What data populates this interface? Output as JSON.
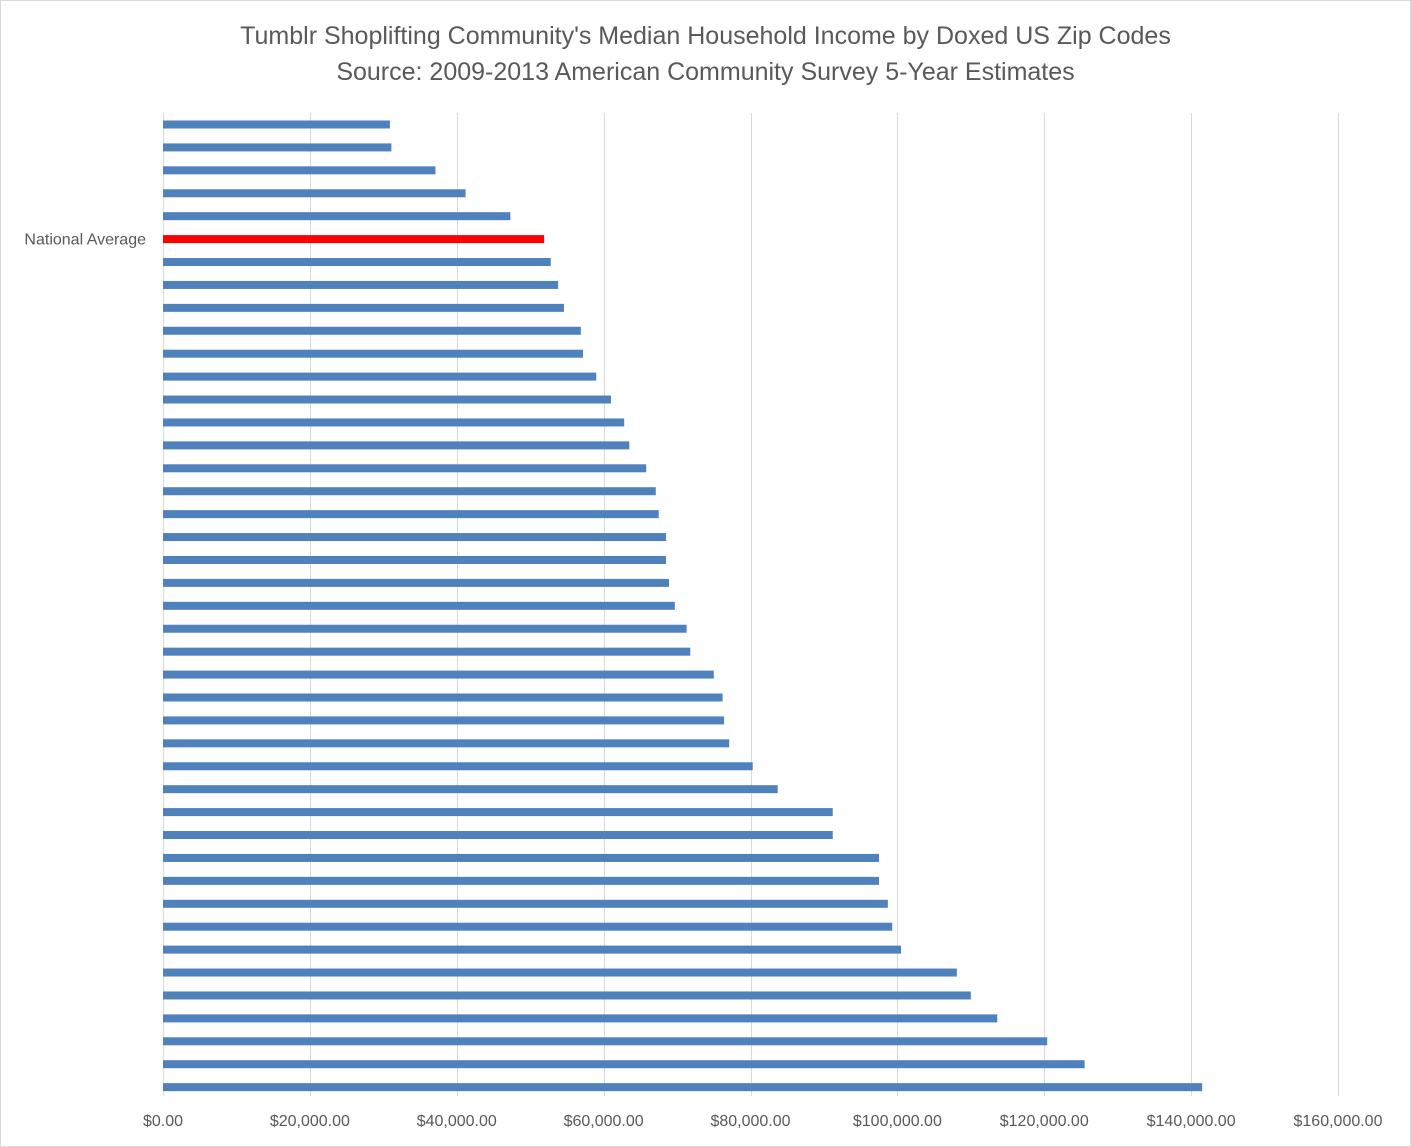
{
  "chart_data": {
    "type": "bar",
    "orientation": "horizontal",
    "title": "Tumblr Shoplifting Community's Median Household Income by Doxed US Zip Codes",
    "subtitle": "Source: 2009-2013 American Community Survey 5-Year Estimates",
    "xlabel": "",
    "ylabel": "",
    "xlim": [
      0,
      160000
    ],
    "x_ticks": [
      0,
      20000,
      40000,
      60000,
      80000,
      100000,
      120000,
      140000,
      160000
    ],
    "x_tick_labels": [
      "$0.00",
      "$20,000.00",
      "$40,000.00",
      "$60,000.00",
      "$80,000.00",
      "$100,000.00",
      "$120,000.00",
      "$140,000.00",
      "$160,000.00"
    ],
    "grid": "vertical",
    "legend": "none",
    "bar_color": "#4f81bd",
    "highlight_color": "#ff0000",
    "categories": [
      "",
      "",
      "",
      "",
      "",
      "National Average",
      "",
      "",
      "",
      "",
      "",
      "",
      "",
      "",
      "",
      "",
      "",
      "",
      "",
      "",
      "",
      "",
      "",
      "",
      "",
      "",
      "",
      "",
      "",
      "",
      "",
      "",
      "",
      "",
      "",
      "",
      "",
      "",
      "",
      "",
      "",
      "",
      ""
    ],
    "highlight_index": 5,
    "values": [
      30900,
      31100,
      37100,
      41200,
      47300,
      51900,
      52800,
      53800,
      54600,
      56900,
      57200,
      59000,
      61000,
      62800,
      63500,
      65800,
      67100,
      67500,
      68500,
      68500,
      68900,
      69700,
      71300,
      71800,
      75000,
      76200,
      76400,
      77100,
      80300,
      83700,
      91200,
      91200,
      97500,
      97500,
      98700,
      99300,
      100500,
      108100,
      110000,
      113600,
      120400,
      125500,
      141500
    ]
  }
}
